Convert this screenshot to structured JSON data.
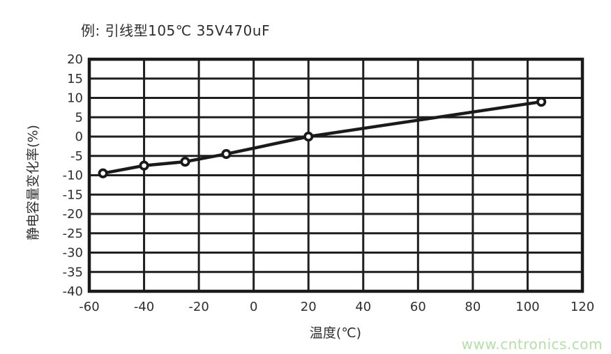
{
  "title": "例: 引线型105℃ 35V470uF",
  "watermark": {
    "text": "www.cntronics.com",
    "color": "#b5dfa8"
  },
  "colors": {
    "line": "#1a1a1a",
    "grid": "#1f1f1f",
    "border": "#1a1a1a",
    "tick_text": "#2e2e2e",
    "marker_fill": "#ffffff",
    "background": "#ffffff"
  },
  "chart_data": {
    "type": "line",
    "title": "例: 引线型105℃ 35V470uF",
    "xlabel": "温度(℃)",
    "ylabel": "静电容量变化率(%)",
    "xlim": [
      -60,
      120
    ],
    "ylim": [
      -40,
      20
    ],
    "x_ticks": [
      -60,
      -40,
      -20,
      0,
      20,
      40,
      60,
      80,
      100,
      120
    ],
    "y_ticks": [
      20,
      15,
      10,
      5,
      0,
      -5,
      -10,
      -15,
      -20,
      -25,
      -30,
      -35,
      -40
    ],
    "grid": true,
    "legend": "none",
    "series": [
      {
        "name": "capacitance-change-rate",
        "x": [
          -55,
          -40,
          -25,
          -10,
          20,
          105
        ],
        "y": [
          -9.5,
          -7.5,
          -6.5,
          -4.5,
          0,
          9
        ],
        "marker": "open-circle",
        "color": "#1a1a1a"
      }
    ]
  }
}
